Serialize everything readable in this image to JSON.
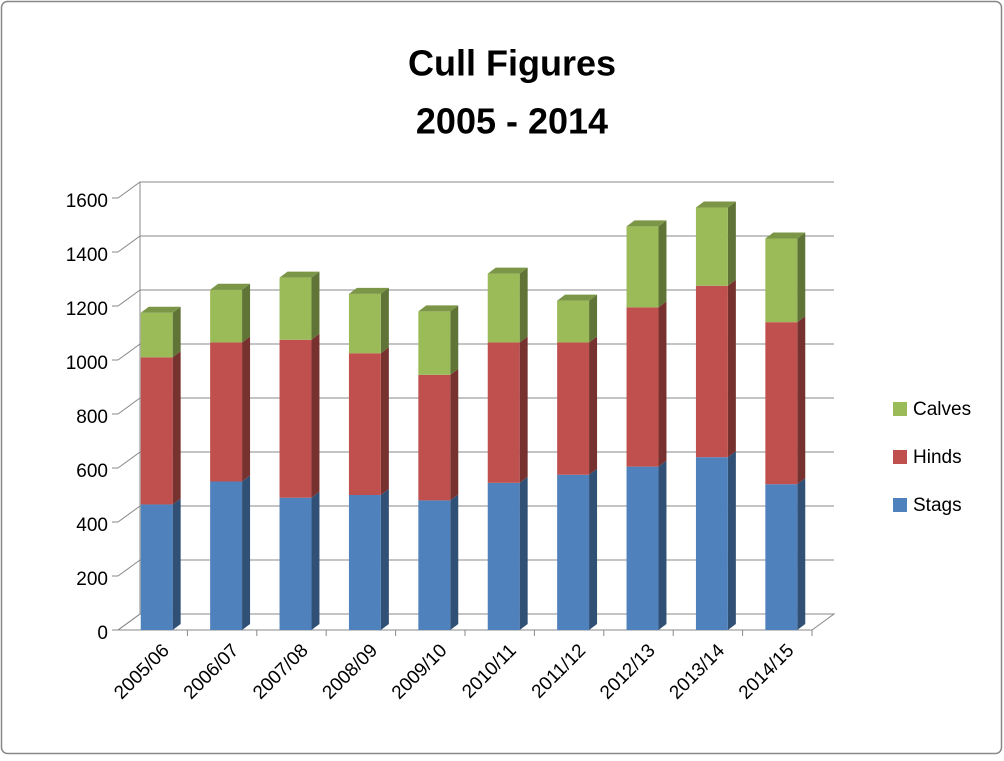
{
  "chart_data": {
    "type": "bar3d_stacked",
    "title": "Cull Figures",
    "subtitle": "2005 - 2014",
    "categories": [
      "2005/06",
      "2006/07",
      "2007/08",
      "2008/09",
      "2009/10",
      "2010/11",
      "2011/12",
      "2012/13",
      "2013/14",
      "2014/15"
    ],
    "series": [
      {
        "name": "Stags",
        "color": "#4f81bd",
        "values": [
          465,
          550,
          490,
          500,
          480,
          545,
          575,
          605,
          640,
          540
        ]
      },
      {
        "name": "Hinds",
        "color": "#c0504d",
        "values": [
          545,
          515,
          585,
          525,
          465,
          520,
          490,
          590,
          635,
          600
        ]
      },
      {
        "name": "Calves",
        "color": "#9bbb59",
        "values": [
          165,
          195,
          230,
          220,
          235,
          255,
          155,
          300,
          290,
          310
        ]
      }
    ],
    "ylim": [
      0,
      1600
    ],
    "yticks": [
      0,
      200,
      400,
      600,
      800,
      1000,
      1200,
      1400,
      1600
    ],
    "grid": true,
    "legend": "right"
  }
}
